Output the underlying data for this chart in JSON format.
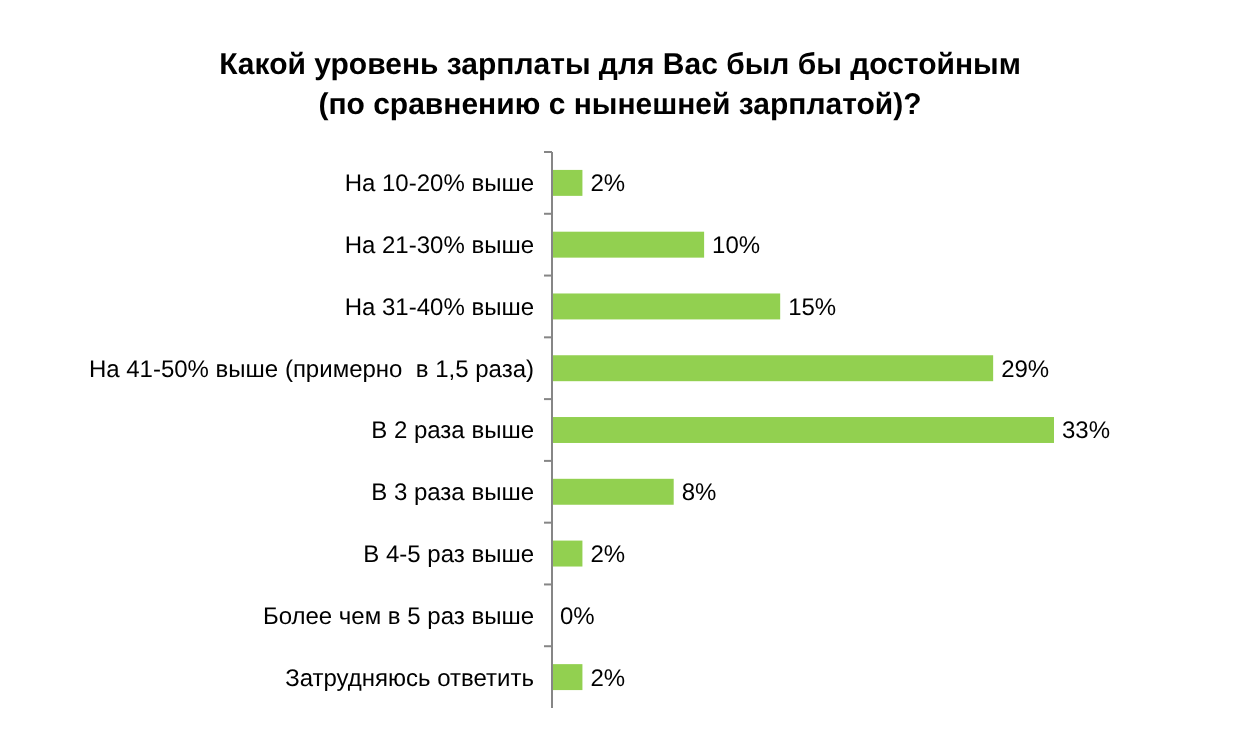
{
  "chart_data": {
    "type": "bar",
    "orientation": "horizontal",
    "title": "Какой уровень зарплаты для Вас был бы достойным\n(по сравнению с нынешней зарплатой)?",
    "categories": [
      "На 10-20% выше",
      "На 21-30% выше",
      "На 31-40% выше",
      "На 41-50% выше (примерно  в 1,5 раза)",
      "В 2 раза выше",
      "В 3 раза выше",
      "В 4-5 раз выше",
      "Более чем в 5 раз выше",
      "Затрудняюсь ответить"
    ],
    "values": [
      2,
      10,
      15,
      29,
      33,
      8,
      2,
      0,
      2
    ],
    "value_labels": [
      "2%",
      "10%",
      "15%",
      "29%",
      "33%",
      "8%",
      "2%",
      "0%",
      "2%"
    ],
    "color": "#92d050"
  }
}
